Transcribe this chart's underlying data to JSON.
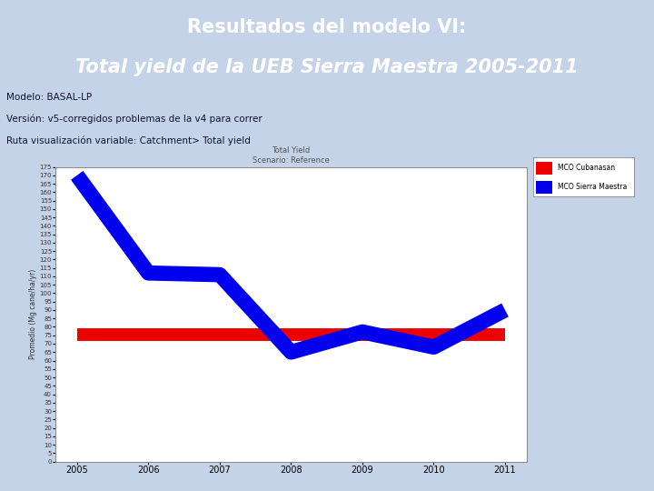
{
  "title_line1": "Resultados del modelo VI:",
  "title_line2": "Total yield de la UEB Sierra Maestra 2005-2011",
  "header_bg": "#1F5FA6",
  "header_text_color": "#FFFFFF",
  "info_bg": "#C5D3E8",
  "info_lines": [
    "Modelo: BASAL-LP",
    "Versón: v5-corregidos problemas de la v4 para correr",
    "Ruta visualización variable: Catchment> Total yield"
  ],
  "chart_title_line1": "Total Yield",
  "chart_title_line2": "Scenario: Reference",
  "years": [
    2005,
    2006,
    2007,
    2008,
    2009,
    2010,
    2011
  ],
  "blue_values": [
    170,
    112,
    111,
    65,
    77,
    68,
    90
  ],
  "red_value": 75.5,
  "blue_label": "MCO Sierra Maestra",
  "red_label": "MCO Cubanasan",
  "blue_color": "#0000EE",
  "red_color": "#EE0000",
  "ylim": [
    0,
    175
  ],
  "ytick_step": 5,
  "ylabel": "Promedio (Mg cane/ha/yr)",
  "chart_bg": "#FFFFFF",
  "left_panel_color": "#F5F5DC",
  "bottom_panel_color": "#F5F5DC",
  "blue_linewidth": 12,
  "red_linewidth": 10
}
